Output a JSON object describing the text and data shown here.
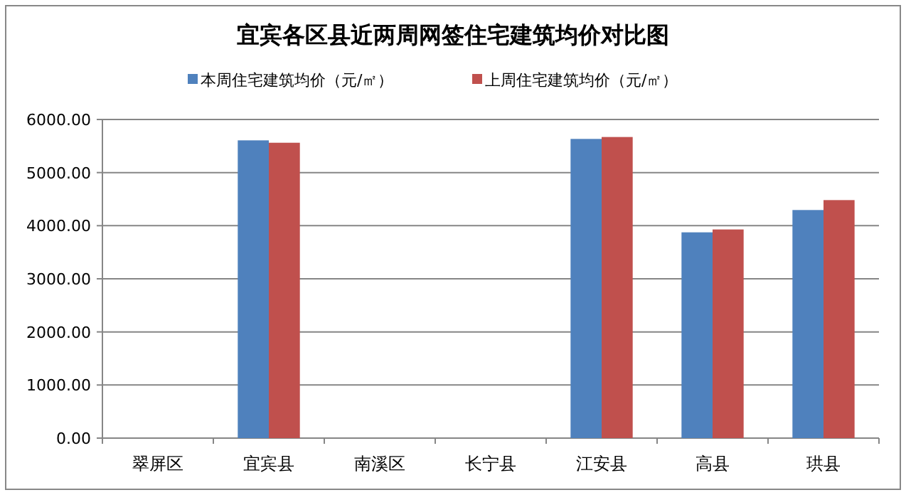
{
  "chart_data": {
    "type": "bar",
    "title": "宜宾各区县近两周网签住宅建筑均价对比图",
    "categories": [
      "翠屏区",
      "宜宾县",
      "南溪区",
      "长宁县",
      "江安县",
      "高县",
      "珙县"
    ],
    "series": [
      {
        "name": "本周住宅建筑均价（元/㎡）",
        "color": "#4f81bd",
        "values": [
          null,
          5607,
          null,
          null,
          5634,
          3875,
          4295
        ]
      },
      {
        "name": "上周住宅建筑均价（元/㎡）",
        "color": "#c0504d",
        "values": [
          null,
          5562,
          null,
          null,
          5670,
          3929,
          4482
        ]
      }
    ],
    "ylim": [
      0,
      6000
    ],
    "yticks": [
      {
        "value": 0,
        "label": "0.00"
      },
      {
        "value": 1000,
        "label": "1000.00"
      },
      {
        "value": 2000,
        "label": "2000.00"
      },
      {
        "value": 3000,
        "label": "3000.00"
      },
      {
        "value": 4000,
        "label": "4000.00"
      },
      {
        "value": 5000,
        "label": "5000.00"
      },
      {
        "value": 6000,
        "label": "6000.00"
      }
    ],
    "grid": "y",
    "legend": "top"
  }
}
